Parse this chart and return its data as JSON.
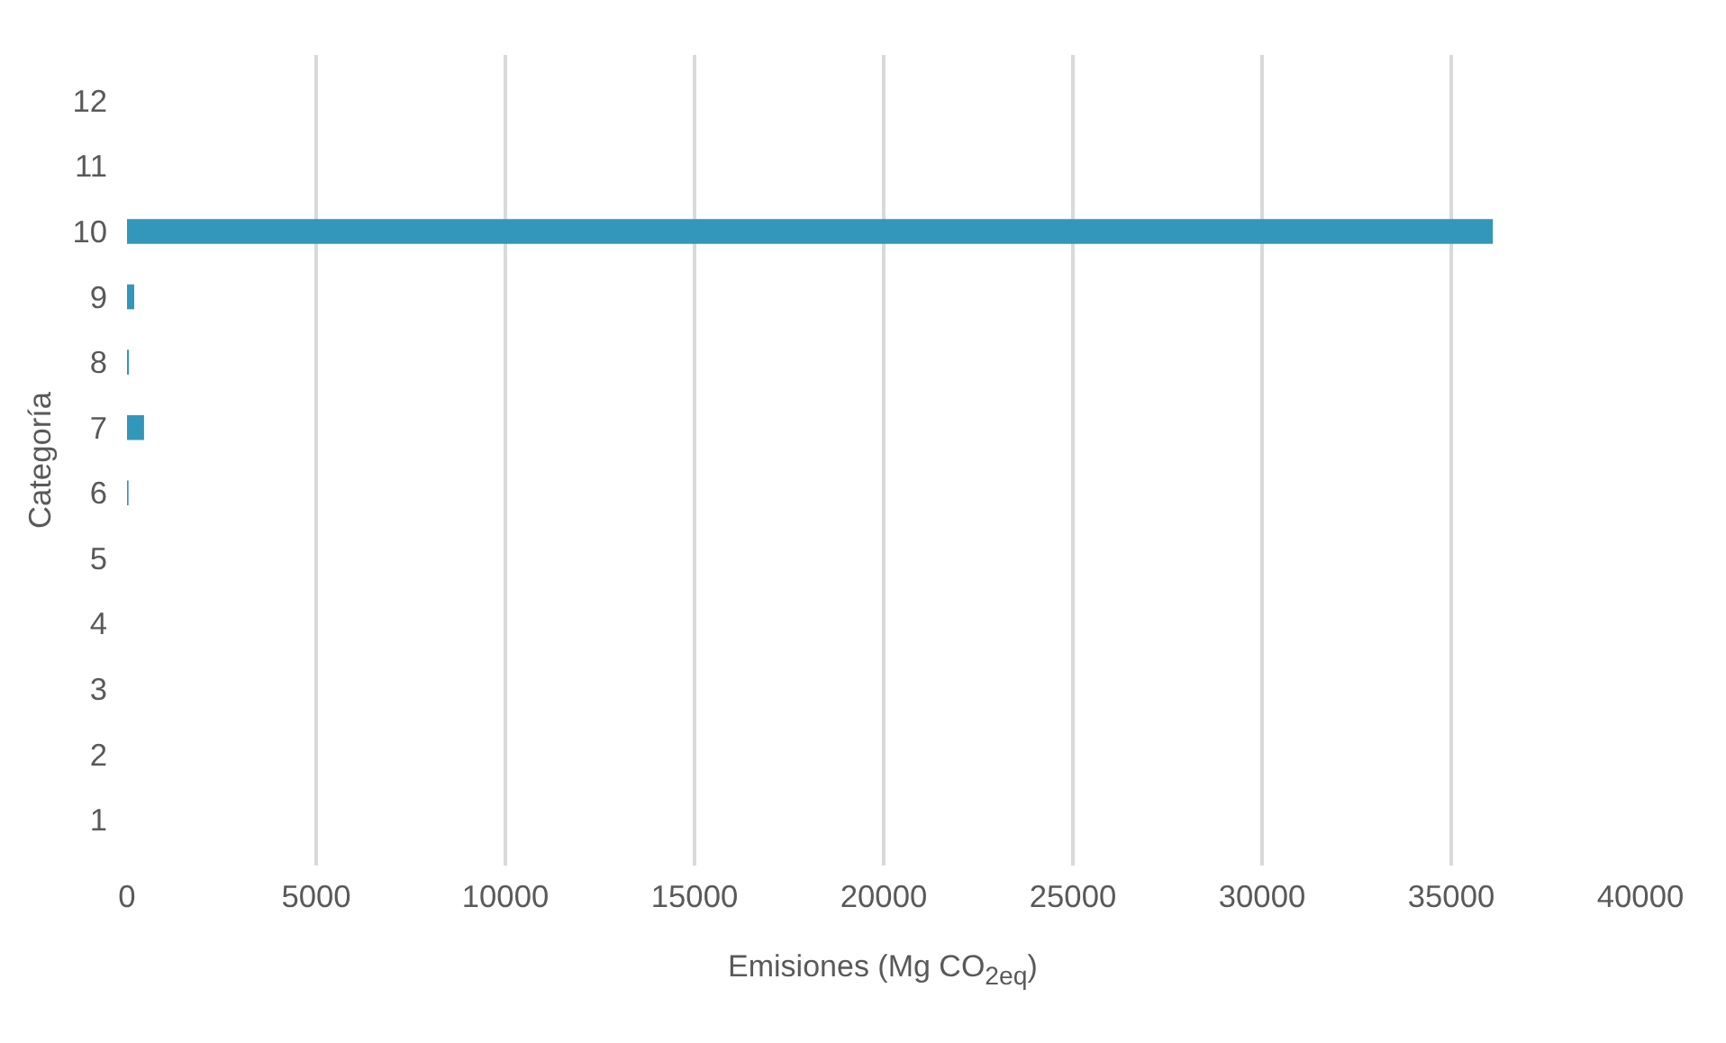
{
  "chart_data": {
    "type": "bar",
    "orientation": "horizontal",
    "xlabel": "Emisiones (Mg CO$_{2eq}$)",
    "ylabel": "Categoría",
    "categories": [
      "12",
      "11",
      "10",
      "9",
      "8",
      "7",
      "6",
      "5",
      "4",
      "3",
      "2",
      "1"
    ],
    "values": [
      0,
      0,
      36100,
      190,
      50,
      450,
      40,
      0,
      0,
      0,
      0,
      0
    ],
    "color": "#3396bb",
    "xlim": [
      0,
      40000
    ],
    "xticks": [
      0,
      5000,
      10000,
      15000,
      20000,
      25000,
      30000,
      35000,
      40000
    ],
    "grid": "x",
    "legend": false
  }
}
